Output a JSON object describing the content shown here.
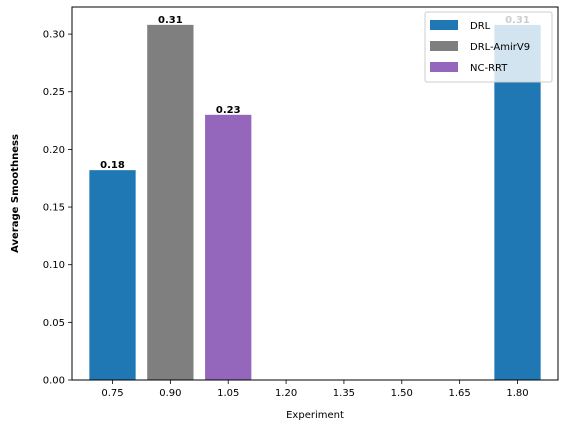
{
  "chart_data": {
    "type": "bar",
    "xlabel": "Experiment",
    "ylabel": "Average Smoothness",
    "xlim": [
      0.645,
      1.905
    ],
    "ylim": [
      0,
      0.3235
    ],
    "xticks": [
      "0.75",
      "0.90",
      "1.05",
      "1.20",
      "1.35",
      "1.50",
      "1.65",
      "1.80"
    ],
    "yticks": [
      "0.00",
      "0.05",
      "0.10",
      "0.15",
      "0.20",
      "0.25",
      "0.30"
    ],
    "bar_width": 0.12,
    "series": [
      {
        "name": "DRL",
        "color": "#1f77b4",
        "bars": [
          {
            "x": 0.75,
            "value": 0.182,
            "label": "0.18"
          },
          {
            "x": 1.8,
            "value": 0.308,
            "label": "0.31"
          }
        ]
      },
      {
        "name": "DRL-AmirV9",
        "color": "#7f7f7f",
        "bars": [
          {
            "x": 0.9,
            "value": 0.308,
            "label": "0.31"
          }
        ]
      },
      {
        "name": "NC-RRT",
        "color": "#9467bd",
        "bars": [
          {
            "x": 1.05,
            "value": 0.23,
            "label": "0.23"
          }
        ]
      }
    ],
    "legend_position": "top-right",
    "grid": false
  }
}
